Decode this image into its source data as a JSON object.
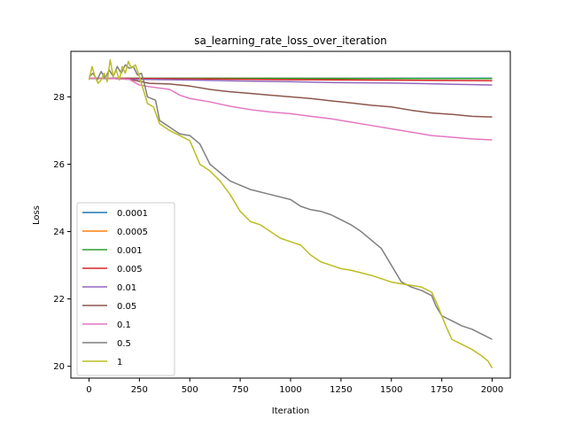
{
  "chart_data": {
    "type": "line",
    "title": "sa_learning_rate_loss_over_iteration",
    "xlabel": "Iteration",
    "ylabel": "Loss",
    "xlim": [
      -90,
      2090
    ],
    "ylim": [
      19.65,
      29.35
    ],
    "xticks": [
      0,
      250,
      500,
      750,
      1000,
      1250,
      1500,
      1750,
      2000
    ],
    "yticks": [
      20,
      22,
      24,
      26,
      28
    ],
    "legend_position": "center-left",
    "grid": false,
    "series": [
      {
        "name": "0.0001",
        "color": "#1f77b4",
        "points": [
          [
            0,
            28.55
          ],
          [
            60,
            28.55
          ],
          [
            2000,
            28.55
          ]
        ]
      },
      {
        "name": "0.0005",
        "color": "#ff7f0e",
        "points": [
          [
            0,
            28.55
          ],
          [
            60,
            28.55
          ],
          [
            2000,
            28.54
          ]
        ]
      },
      {
        "name": "0.001",
        "color": "#2ca02c",
        "points": [
          [
            0,
            28.55
          ],
          [
            60,
            28.55
          ],
          [
            2000,
            28.54
          ]
        ]
      },
      {
        "name": "0.005",
        "color": "#d62728",
        "points": [
          [
            0,
            28.55
          ],
          [
            60,
            28.55
          ],
          [
            1000,
            28.51
          ],
          [
            2000,
            28.48
          ]
        ]
      },
      {
        "name": "0.01",
        "color": "#9467bd",
        "points": [
          [
            0,
            28.55
          ],
          [
            60,
            28.55
          ],
          [
            250,
            28.52
          ],
          [
            500,
            28.5
          ],
          [
            750,
            28.47
          ],
          [
            1000,
            28.45
          ],
          [
            1250,
            28.42
          ],
          [
            1500,
            28.41
          ],
          [
            1750,
            28.38
          ],
          [
            2000,
            28.35
          ]
        ]
      },
      {
        "name": "0.05",
        "color": "#8c564b",
        "points": [
          [
            0,
            28.55
          ],
          [
            100,
            28.55
          ],
          [
            200,
            28.52
          ],
          [
            300,
            28.4
          ],
          [
            400,
            28.38
          ],
          [
            500,
            28.32
          ],
          [
            600,
            28.22
          ],
          [
            700,
            28.15
          ],
          [
            800,
            28.1
          ],
          [
            900,
            28.05
          ],
          [
            1000,
            28.0
          ],
          [
            1100,
            27.95
          ],
          [
            1200,
            27.88
          ],
          [
            1300,
            27.82
          ],
          [
            1400,
            27.75
          ],
          [
            1500,
            27.7
          ],
          [
            1600,
            27.6
          ],
          [
            1700,
            27.52
          ],
          [
            1800,
            27.48
          ],
          [
            1900,
            27.42
          ],
          [
            2000,
            27.4
          ]
        ]
      },
      {
        "name": "0.1",
        "color": "#e377c2",
        "points": [
          [
            0,
            28.55
          ],
          [
            100,
            28.55
          ],
          [
            200,
            28.52
          ],
          [
            250,
            28.35
          ],
          [
            300,
            28.3
          ],
          [
            400,
            28.22
          ],
          [
            450,
            28.05
          ],
          [
            500,
            27.95
          ],
          [
            600,
            27.85
          ],
          [
            700,
            27.72
          ],
          [
            800,
            27.62
          ],
          [
            900,
            27.55
          ],
          [
            1000,
            27.5
          ],
          [
            1100,
            27.42
          ],
          [
            1200,
            27.35
          ],
          [
            1300,
            27.25
          ],
          [
            1400,
            27.15
          ],
          [
            1500,
            27.05
          ],
          [
            1600,
            26.95
          ],
          [
            1700,
            26.85
          ],
          [
            1800,
            26.8
          ],
          [
            1900,
            26.75
          ],
          [
            2000,
            26.72
          ]
        ]
      },
      {
        "name": "0.5",
        "color": "#7f7f7f",
        "points": [
          [
            0,
            28.6
          ],
          [
            20,
            28.7
          ],
          [
            40,
            28.5
          ],
          [
            60,
            28.75
          ],
          [
            80,
            28.55
          ],
          [
            100,
            28.8
          ],
          [
            120,
            28.6
          ],
          [
            140,
            28.9
          ],
          [
            160,
            28.7
          ],
          [
            180,
            28.95
          ],
          [
            200,
            28.85
          ],
          [
            220,
            28.9
          ],
          [
            240,
            28.65
          ],
          [
            260,
            28.7
          ],
          [
            270,
            28.5
          ],
          [
            290,
            28.0
          ],
          [
            310,
            27.95
          ],
          [
            330,
            27.9
          ],
          [
            350,
            27.3
          ],
          [
            400,
            27.1
          ],
          [
            450,
            26.9
          ],
          [
            500,
            26.85
          ],
          [
            550,
            26.6
          ],
          [
            600,
            26.0
          ],
          [
            700,
            25.5
          ],
          [
            800,
            25.25
          ],
          [
            900,
            25.1
          ],
          [
            1000,
            24.95
          ],
          [
            1050,
            24.75
          ],
          [
            1100,
            24.65
          ],
          [
            1150,
            24.6
          ],
          [
            1200,
            24.5
          ],
          [
            1250,
            24.35
          ],
          [
            1300,
            24.2
          ],
          [
            1350,
            24.0
          ],
          [
            1400,
            23.75
          ],
          [
            1450,
            23.5
          ],
          [
            1500,
            23.0
          ],
          [
            1550,
            22.5
          ],
          [
            1600,
            22.35
          ],
          [
            1650,
            22.25
          ],
          [
            1700,
            22.1
          ],
          [
            1720,
            21.8
          ],
          [
            1750,
            21.5
          ],
          [
            1800,
            21.35
          ],
          [
            1850,
            21.2
          ],
          [
            1900,
            21.1
          ],
          [
            1950,
            20.95
          ],
          [
            2000,
            20.8
          ]
        ]
      },
      {
        "name": "1",
        "color": "#bcbd22",
        "points": [
          [
            0,
            28.5
          ],
          [
            15,
            28.9
          ],
          [
            30,
            28.6
          ],
          [
            45,
            28.4
          ],
          [
            60,
            28.5
          ],
          [
            75,
            28.7
          ],
          [
            90,
            28.45
          ],
          [
            105,
            29.1
          ],
          [
            120,
            28.6
          ],
          [
            135,
            28.8
          ],
          [
            150,
            28.5
          ],
          [
            165,
            28.9
          ],
          [
            180,
            28.7
          ],
          [
            195,
            29.05
          ],
          [
            210,
            28.85
          ],
          [
            230,
            28.95
          ],
          [
            250,
            28.6
          ],
          [
            270,
            28.2
          ],
          [
            290,
            27.8
          ],
          [
            320,
            27.7
          ],
          [
            350,
            27.2
          ],
          [
            400,
            27.0
          ],
          [
            450,
            26.85
          ],
          [
            500,
            26.7
          ],
          [
            550,
            26.0
          ],
          [
            600,
            25.8
          ],
          [
            650,
            25.5
          ],
          [
            700,
            25.1
          ],
          [
            750,
            24.6
          ],
          [
            800,
            24.3
          ],
          [
            850,
            24.2
          ],
          [
            900,
            24.0
          ],
          [
            950,
            23.8
          ],
          [
            1000,
            23.7
          ],
          [
            1050,
            23.6
          ],
          [
            1100,
            23.3
          ],
          [
            1150,
            23.1
          ],
          [
            1200,
            23.0
          ],
          [
            1250,
            22.9
          ],
          [
            1300,
            22.85
          ],
          [
            1400,
            22.7
          ],
          [
            1500,
            22.5
          ],
          [
            1600,
            22.4
          ],
          [
            1650,
            22.35
          ],
          [
            1700,
            22.2
          ],
          [
            1730,
            21.8
          ],
          [
            1770,
            21.2
          ],
          [
            1800,
            20.8
          ],
          [
            1850,
            20.65
          ],
          [
            1900,
            20.5
          ],
          [
            1950,
            20.3
          ],
          [
            1980,
            20.15
          ],
          [
            2000,
            19.95
          ]
        ]
      }
    ]
  }
}
